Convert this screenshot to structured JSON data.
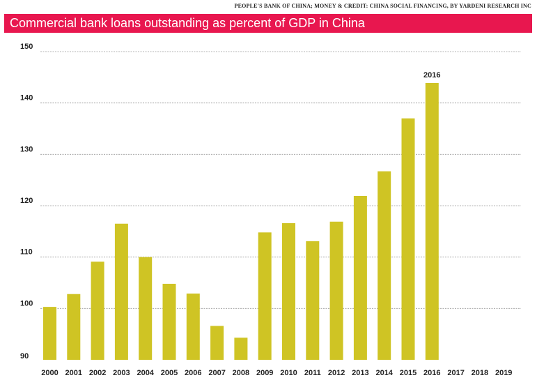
{
  "header": {
    "source": "PEOPLE'S BANK OF CHINA; MONEY & CREDIT: CHINA SOCIAL FINANCING, BY YARDENI RESEARCH INC",
    "title": "Commercial bank loans outstanding as percent of GDP in China"
  },
  "colors": {
    "title_bar": "#e8174f",
    "bar": "#cfc424",
    "grid": "#9a9a9a"
  },
  "chart_data": {
    "type": "bar",
    "title": "Commercial bank loans outstanding as percent of GDP in China",
    "xlabel": "",
    "ylabel": "",
    "categories": [
      "2000",
      "2001",
      "2002",
      "2003",
      "2004",
      "2005",
      "2006",
      "2007",
      "2008",
      "2009",
      "2010",
      "2011",
      "2012",
      "2013",
      "2014",
      "2015",
      "2016",
      "2017",
      "2018",
      "2019"
    ],
    "values": [
      100.3,
      102.8,
      109.1,
      116.5,
      110.0,
      104.8,
      102.9,
      96.6,
      94.3,
      114.8,
      116.6,
      113.1,
      116.9,
      121.9,
      126.7,
      137.0,
      143.9,
      null,
      null,
      null
    ],
    "yticks": [
      90,
      100,
      110,
      120,
      130,
      140,
      150
    ],
    "ylim": [
      90,
      150
    ],
    "grid": true,
    "annotations": [
      {
        "category": "2016",
        "text": "2016"
      }
    ]
  }
}
